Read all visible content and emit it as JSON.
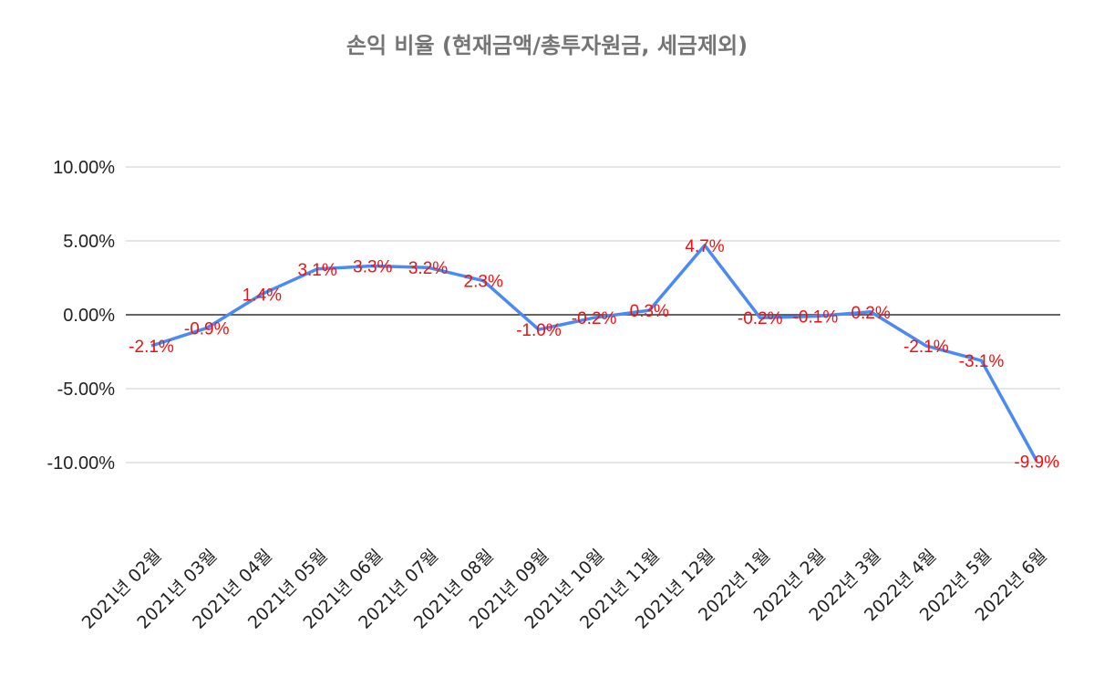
{
  "chart_data": {
    "type": "line",
    "title": "손익 비율 (현재금액/총투자원금, 세금제외)",
    "xlabel": "",
    "ylabel": "",
    "ylim": [
      -10,
      10
    ],
    "yticks": [
      10,
      5,
      0,
      -5,
      -10
    ],
    "ytick_labels": [
      "10.00%",
      "5.00%",
      "0.00%",
      "-5.00%",
      "-10.00%"
    ],
    "grid": true,
    "legend": "none",
    "categories": [
      "2021년 02월",
      "2021년 03월",
      "2021년 04월",
      "2021년 05월",
      "2021년 06월",
      "2021년 07월",
      "2021년 08월",
      "2021년 09월",
      "2021년 10월",
      "2021년 11월",
      "2021년 12월",
      "2022년 1월",
      "2022년 2월",
      "2022년 3월",
      "2022년 4월",
      "2022년 5월",
      "2022년 6월"
    ],
    "series": [
      {
        "values": [
          -2.1,
          -0.9,
          1.4,
          3.1,
          3.3,
          3.2,
          2.3,
          -1.0,
          -0.2,
          0.3,
          4.7,
          -0.2,
          -0.1,
          0.2,
          -2.1,
          -3.1,
          -9.9
        ],
        "labels": [
          "-2.1%",
          "-0.9%",
          "1.4%",
          "3.1%",
          "3.3%",
          "3.2%",
          "2.3%",
          "-1.0%",
          "-0.2%",
          "0.3%",
          "4.7%",
          "-0.2%",
          "-0.1%",
          "0.2%",
          "-2.1%",
          "-3.1%",
          "-9.9%"
        ],
        "color": "#4a8af4",
        "label_color": "#ee1111"
      }
    ]
  }
}
